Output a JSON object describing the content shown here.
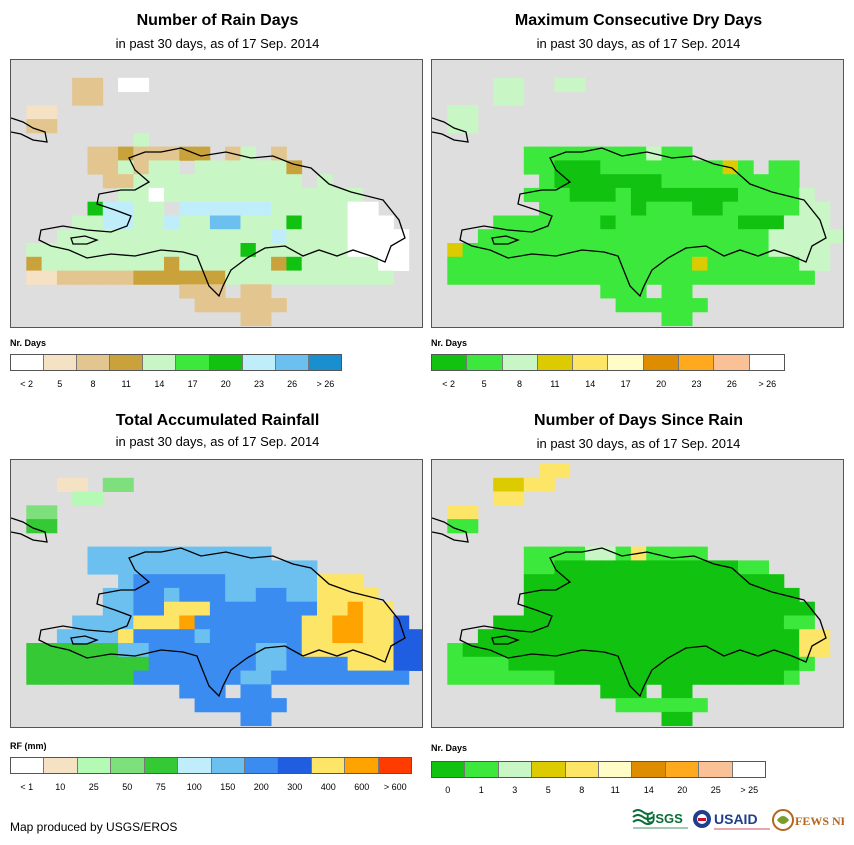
{
  "panels": [
    {
      "title": "Number of Rain Days",
      "subtitle": "in past 30 days, as of 17 Sep. 2014",
      "legend_label": "Nr. Days",
      "legend_colors": [
        "#ffffff",
        "#f5e2c4",
        "#e3c58f",
        "#c9a23b",
        "#c8f7c5",
        "#3de83d",
        "#11c211",
        "#bfeefa",
        "#6cc0ef",
        "#1a8fd0"
      ],
      "legend_ticks": [
        "< 2",
        "5",
        "8",
        "11",
        "14",
        "17",
        "20",
        "23",
        "26",
        "> 26"
      ],
      "cells": [
        "...........................",
        "....CC.aa..................",
        "....CC.....................",
        ".bb........................",
        ".CC........................",
        "........e..................",
        ".....CCDcccDD.Ce.C.........",
        ".....CCecEE.EEEEEED........",
        "......CCeeEEEEEEEEe.E......",
        ".......EeaEeeEEEEEEEEEE....",
        ".....ghhee.hhhhhhEEEEEaa...",
        "....EEhheeheeiiEEEgeEEaaa..",
        "...EEEEEEEEEeeeeehEEEeaaaa.",
        ".EEEEEeeEEEEEEEgeEEeEEaaaa.",
        ".DEEEeEEEEDEEEEEEDgEEEEEaa.",
        ".bbCCCCCDDDDDDEEEEEEEEEEE..",
        "...........CCC.CC..........",
        "............CCCCCC.........",
        "...............CC..........",
        "..........................."
      ]
    },
    {
      "title": "Maximum Consecutive Dry Days",
      "subtitle": "in past 30 days, as of 17 Sep. 2014",
      "legend_label": "Nr. Days",
      "legend_colors": [
        "#11c211",
        "#3de83d",
        "#c8f7c5",
        "#dccb00",
        "#fde567",
        "#fffcc8",
        "#df8d00",
        "#ffaa1e",
        "#fbc196",
        "#ffffff"
      ],
      "legend_ticks": [
        "< 2",
        "5",
        "8",
        "11",
        "14",
        "17",
        "20",
        "23",
        "26",
        "> 26"
      ],
      "cells": [
        "...........................",
        "....cc..cc.................",
        "....cc.....................",
        ".cc........................",
        ".cc........................",
        "...........................",
        "......BBBBBBBBcBB..........",
        "......BBAAABBBBBBBBDB.BB...",
        ".......BAAAAAAABBBBBBBBB...",
        "......BBBAAABAAAAAAABBBBc..",
        ".......BBBBBBABBBAABBBBBcc.",
        "....BBBBBBBABBBBBBBBAAAccc.",
        "...BBBBBBBBBBBBBBBBBBBccccc",
        ".DBBBBBBBBBBBBBBBBBBBBcccc.",
        ".BBBBBBBBBBBBBBBBDBBBBBBcc.",
        ".BBBBBBBBBBBBBBBBBBBBBBBB..",
        "...........BBB.BB..........",
        "............BBBBBB.........",
        "...............BB..........",
        "..........................."
      ]
    },
    {
      "title": "Total Accumulated Rainfall",
      "subtitle": "in past 30 days, as of 17 Sep. 2014",
      "legend_label": "RF (mm)",
      "legend_colors": [
        "#ffffff",
        "#f5e2c4",
        "#b4fab4",
        "#7de07d",
        "#35c935",
        "#bfeefa",
        "#6cc0ef",
        "#3b8cf0",
        "#1f5ee0",
        "#fde567",
        "#ffa300",
        "#ff3c00"
      ],
      "legend_ticks": [
        "< 1",
        "10",
        "25",
        "50",
        "75",
        "100",
        "150",
        "200",
        "300",
        "400",
        "600",
        "> 600"
      ],
      "cells": [
        "...........................",
        "...bb.dd...................",
        "....cc.....................",
        ".dd........................",
        ".ee........................",
        "...........................",
        ".....GGGGGGGGGGGG..........",
        ".....GGGGGGGGGGGGGGG.......",
        ".......GHHHHHHGGGGGGJJJ....",
        "......GGHHGHHHGGHHGGJJJJ...",
        "......GGHHJJJHHHHHHHJJkJJ..",
        "....GGGGJJJkHHHHHHHJJkkJJI.",
        "...GGGGJHHHHGHHHHHHJJkkJJII",
        ".eeeeeeGGHHHHHHHGGHJJJJJJII",
        ".eeEEEEEEHHHHHHHGGHHHHJJJII",
        ".eeEEEEEHHHHHHHGGHHHHHHHHH.",
        "...........HHH.HH..........",
        "............HHHHHH.........",
        "...............HH..........",
        "..........................."
      ]
    },
    {
      "title": "Number of Days Since Rain",
      "subtitle": "in past 30 days, as of 17 Sep. 2014",
      "legend_label": "Nr. Days",
      "legend_colors": [
        "#11c211",
        "#3de83d",
        "#c8f7c5",
        "#dccb00",
        "#fde567",
        "#fffcc8",
        "#df8d00",
        "#ffaa1e",
        "#fbc196",
        "#ffffff"
      ],
      "legend_ticks": [
        "0",
        "1",
        "3",
        "5",
        "8",
        "11",
        "14",
        "20",
        "25",
        "> 25"
      ],
      "cells": [
        ".......ee..................",
        "....ddee...................",
        "....ee.....................",
        ".ee........................",
        ".bb........................",
        "...........................",
        "......bbBBccBeBBBB.........",
        "......BBAAAAAAAAAAAABB.....",
        "......AAAAAAAAAAAAAAAAA....",
        "......AAAAAAAAAAAAAAAAAA...",
        "......AAAAAAAAAAAAAAAAAAA..",
        "....AAAAAAAAAAAAAAAAAAABB..",
        "...AAAAAAAAAAAAAAAAAAAAAEE.",
        ".bAAAAAAAAAAAAAAAAAAAAAAEE.",
        ".BBBBAAAAAAAAAAAAAAAAAAAB..",
        ".BBBBBBBAAAAAAAAAAAAAAAB...",
        "...........AAA.AA..........",
        "............BBBBBB.........",
        "...............AA..........",
        "..........................."
      ]
    }
  ],
  "footer": "Map produced by USGS/EROS",
  "logos": [
    "USGS",
    "USAID",
    "FEWS NET"
  ],
  "colors": {
    "background": "#dedede",
    "coastline": "#000000"
  }
}
